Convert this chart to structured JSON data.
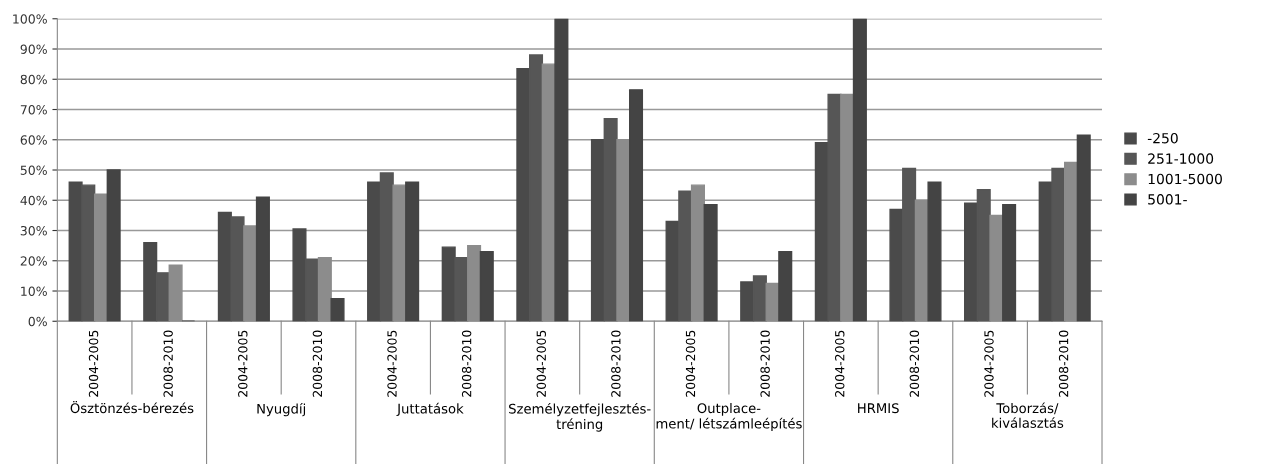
{
  "chart_data": {
    "type": "bar",
    "categories": [
      "2004-2005",
      "2008-2010",
      "2004-2005",
      "2008-2010",
      "2004-2005",
      "2008-2010",
      "2004-2005",
      "2008-2010",
      "2004-2005",
      "2008-2010",
      "2004-2005",
      "2008-2010",
      "2004-2005",
      "2008-2010"
    ],
    "series": [
      {
        "name": "-250",
        "color": "#4a4a4a",
        "values": [
          46,
          26,
          36,
          30.5,
          46,
          24.5,
          83.5,
          60,
          33,
          13,
          59,
          37,
          39,
          46
        ]
      },
      {
        "name": "251-1000",
        "color": "#565656",
        "values": [
          45,
          16,
          34.5,
          20.5,
          49,
          21,
          88,
          67,
          43,
          15,
          75,
          50.5,
          43.5,
          50.5
        ]
      },
      {
        "name": "1001-5000",
        "color": "#8c8c8c",
        "values": [
          42,
          18.5,
          31.5,
          21,
          45,
          25,
          85,
          60,
          45,
          12.5,
          75,
          40,
          35,
          52.5
        ]
      },
      {
        "name": "5001-",
        "color": "#444444",
        "values": [
          50,
          0,
          41,
          7.5,
          46,
          23,
          100,
          76.5,
          38.5,
          23,
          100,
          46,
          38.5,
          61.5
        ]
      }
    ],
    "annotations": [
      "Ösztönzés-bérezés",
      "Nyugdíj",
      "Juttatások",
      "Személyzetfejlesztés-\ntréning",
      "Outplace-\nment/ létszámleépítés",
      "HRMIS",
      "Toborzás/\nkiválasztás"
    ],
    "ylim": [
      0,
      100
    ],
    "yticks": [
      {
        "value": 0,
        "label": "0%"
      },
      {
        "value": 10,
        "label": "10%"
      },
      {
        "value": 20,
        "label": "20%"
      },
      {
        "value": 30,
        "label": "30%"
      },
      {
        "value": 40,
        "label": "40%"
      },
      {
        "value": 50,
        "label": "50%"
      },
      {
        "value": 60,
        "label": "60%"
      },
      {
        "value": 70,
        "label": "70%"
      },
      {
        "value": 80,
        "label": "80%"
      },
      {
        "value": 90,
        "label": "90%"
      },
      {
        "value": 100,
        "label": "100%"
      }
    ],
    "grid": "y",
    "legend": "right"
  }
}
